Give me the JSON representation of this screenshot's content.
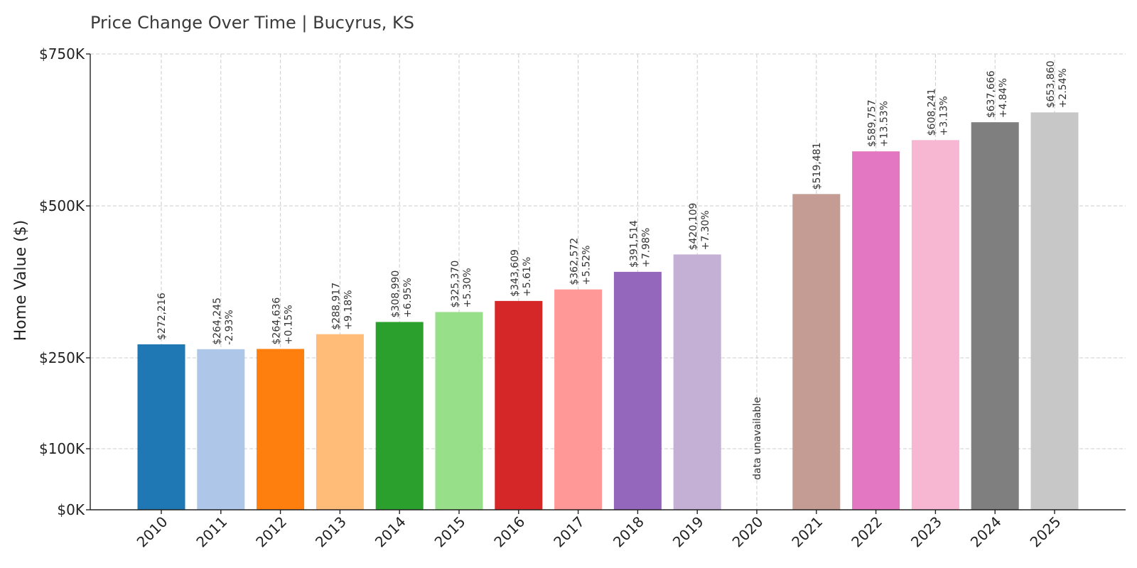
{
  "chart_data": {
    "type": "bar",
    "title": "Price Change Over Time | Bucyrus, KS",
    "xlabel": "",
    "ylabel": "Home Value ($)",
    "ylim": [
      0,
      750000
    ],
    "y_scale": "piecewise",
    "y_ticks": [
      {
        "value": 0,
        "label": "$0K"
      },
      {
        "value": 100000,
        "label": "$100K"
      },
      {
        "value": 250000,
        "label": "$250K"
      },
      {
        "value": 500000,
        "label": "$500K"
      },
      {
        "value": 750000,
        "label": "$750K"
      }
    ],
    "grid": true,
    "categories": [
      "2010",
      "2011",
      "2012",
      "2013",
      "2014",
      "2015",
      "2016",
      "2017",
      "2018",
      "2019",
      "2020",
      "2021",
      "2022",
      "2023",
      "2024",
      "2025"
    ],
    "values": [
      272216,
      264245,
      264636,
      288917,
      308990,
      325370,
      343609,
      362572,
      391514,
      420109,
      null,
      519481,
      589757,
      608241,
      637666,
      653860
    ],
    "value_labels": [
      "$272,216",
      "$264,245",
      "$264,636",
      "$288,917",
      "$308,990",
      "$325,370",
      "$343,609",
      "$362,572",
      "$391,514",
      "$420,109",
      "",
      "$519,481",
      "$589,757",
      "$608,241",
      "$637,666",
      "$653,860"
    ],
    "change_labels": [
      "",
      "-2.93%",
      "+0.15%",
      "+9.18%",
      "+6.95%",
      "+5.30%",
      "+5.61%",
      "+5.52%",
      "+7.98%",
      "+7.30%",
      "",
      "",
      "+13.53%",
      "+3.13%",
      "+4.84%",
      "+2.54%"
    ],
    "missing_label": "data unavailable",
    "colors": [
      "#1f77b4",
      "#aec7e8",
      "#ff7f0e",
      "#ffbb78",
      "#2ca02c",
      "#98df8a",
      "#d62728",
      "#ff9896",
      "#9467bd",
      "#c5b0d5",
      "#8c564b",
      "#c49c94",
      "#e377c2",
      "#f7b6d2",
      "#7f7f7f",
      "#c7c7c7"
    ]
  }
}
